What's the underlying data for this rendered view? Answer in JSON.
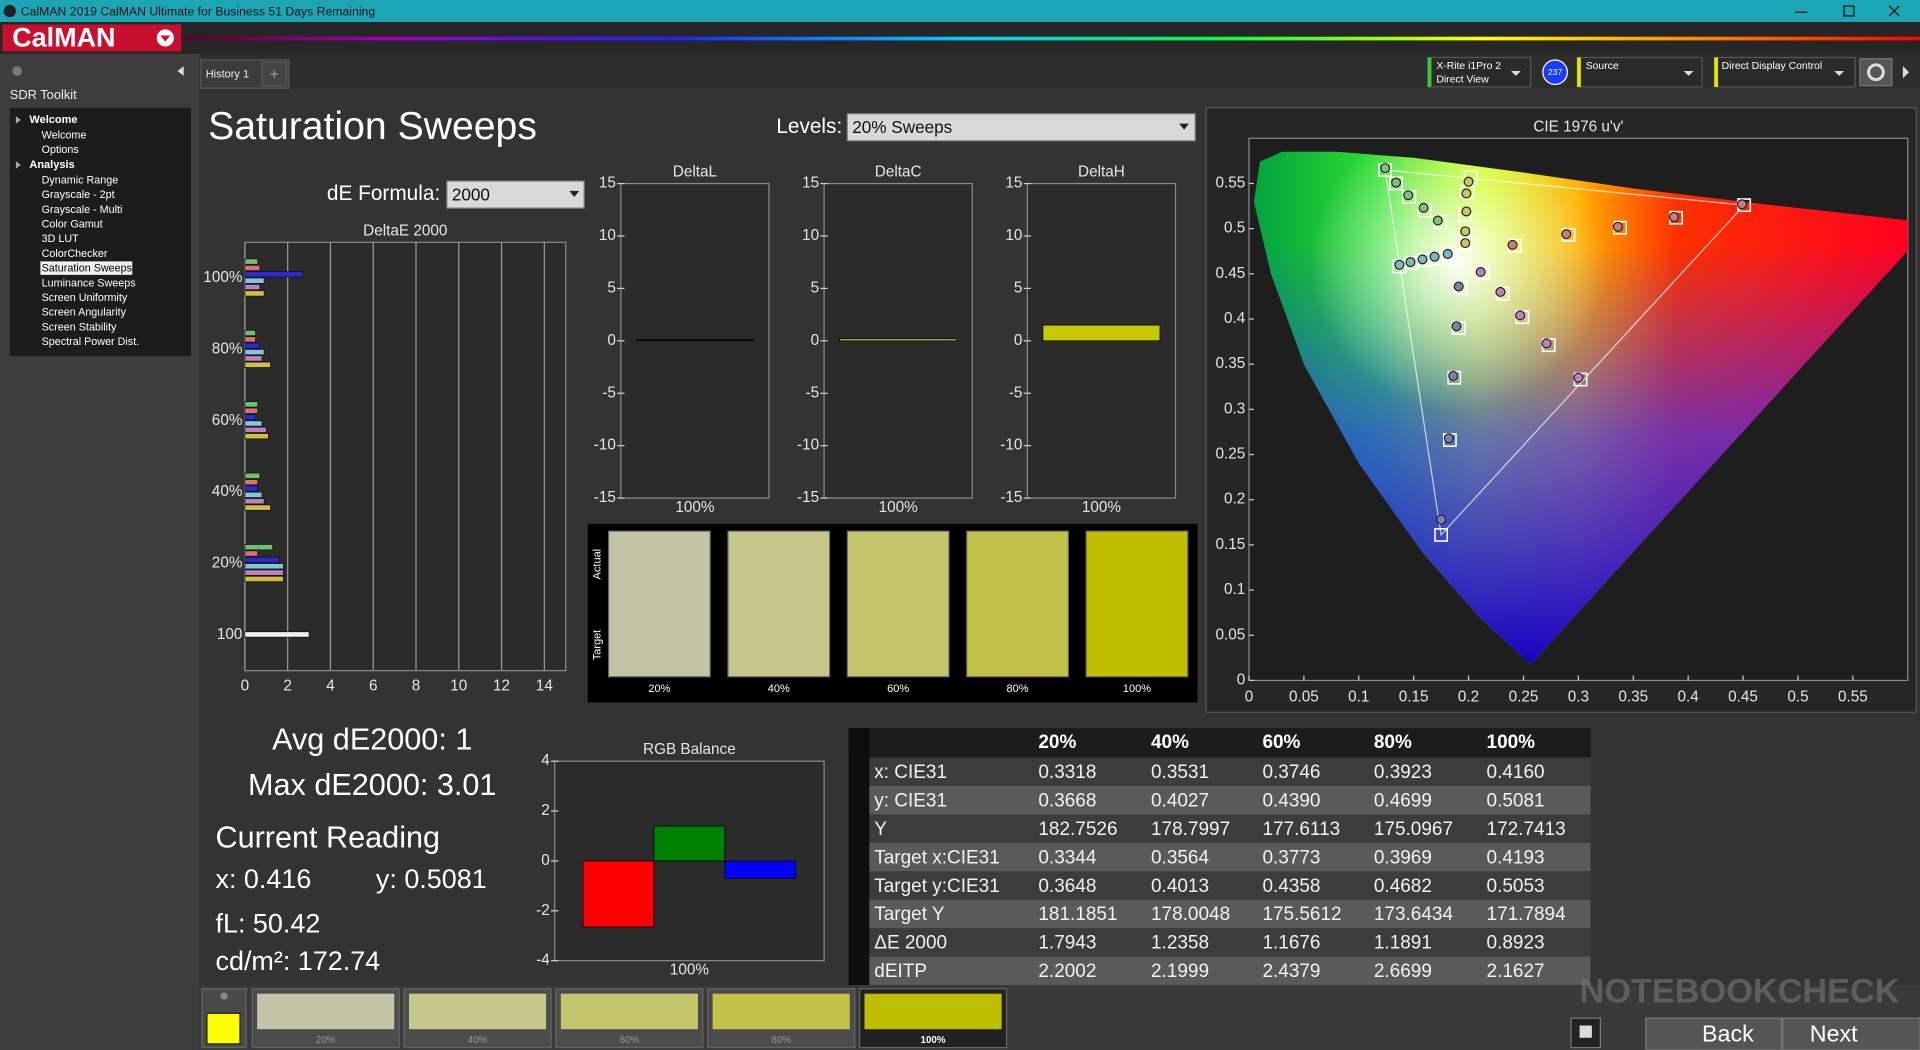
{
  "window": {
    "title": "CalMAN 2019 CalMAN Ultimate for Business 51 Days Remaining",
    "logo": "CalMAN"
  },
  "sidebar": {
    "header": "SDR Toolkit",
    "groups": [
      {
        "label": "Welcome",
        "items": [
          "Welcome",
          "Options"
        ]
      },
      {
        "label": "Analysis",
        "items": [
          "Dynamic Range",
          "Grayscale - 2pt",
          "Grayscale - Multi",
          "Color Gamut",
          "3D LUT",
          "ColorChecker",
          "Saturation Sweeps",
          "Luminance Sweeps",
          "Screen Uniformity",
          "Screen Angularity",
          "Screen Stability",
          "Spectral Power Dist."
        ],
        "selected": 6
      }
    ]
  },
  "tabs": {
    "history": "History 1"
  },
  "devices": {
    "meter": "X-Rite i1Pro 2",
    "meter_mode": "Direct View",
    "meter_badge": "237",
    "source": "Source",
    "display": "Direct Display Control"
  },
  "page": {
    "title": "Saturation Sweeps",
    "levels_label": "Levels:",
    "levels_value": "20% Sweeps",
    "formula_label": "dE Formula:",
    "formula_value": "2000"
  },
  "swatches": {
    "actual_label": "Actual",
    "target_label": "Target",
    "items": [
      {
        "label": "20%",
        "color": "#c3c6a6"
      },
      {
        "label": "40%",
        "color": "#c7c78c"
      },
      {
        "label": "60%",
        "color": "#c5c56b"
      },
      {
        "label": "80%",
        "color": "#c3c349"
      },
      {
        "label": "100%",
        "color": "#bfbf00"
      }
    ]
  },
  "readings": {
    "avg": "Avg dE2000: 1",
    "max": "Max dE2000: 3.01",
    "heading": "Current Reading",
    "x": "x: 0.416",
    "y": "y: 0.5081",
    "fl": "fL: 50.42",
    "cdm2": "cd/m²: 172.74",
    "color": "#ffff00"
  },
  "table": {
    "columns": [
      "20%",
      "40%",
      "60%",
      "80%",
      "100%"
    ],
    "rows": [
      {
        "label": "x: CIE31",
        "cells": [
          "0.3318",
          "0.3531",
          "0.3746",
          "0.3923",
          "0.4160"
        ]
      },
      {
        "label": "y: CIE31",
        "cells": [
          "0.3668",
          "0.4027",
          "0.4390",
          "0.4699",
          "0.5081"
        ]
      },
      {
        "label": "Y",
        "cells": [
          "182.7526",
          "178.7997",
          "177.6113",
          "175.0967",
          "172.7413"
        ]
      },
      {
        "label": "Target x:CIE31",
        "cells": [
          "0.3344",
          "0.3564",
          "0.3773",
          "0.3969",
          "0.4193"
        ]
      },
      {
        "label": "Target y:CIE31",
        "cells": [
          "0.3648",
          "0.4013",
          "0.4358",
          "0.4682",
          "0.5053"
        ]
      },
      {
        "label": "Target Y",
        "cells": [
          "181.1851",
          "178.0048",
          "175.5612",
          "173.6434",
          "171.7894"
        ]
      },
      {
        "label": "ΔE 2000",
        "cells": [
          "1.7943",
          "1.2358",
          "1.1676",
          "1.1891",
          "0.8923"
        ]
      },
      {
        "label": "dEITP",
        "cells": [
          "2.2002",
          "2.1999",
          "2.4379",
          "2.6699",
          "2.1627"
        ]
      }
    ]
  },
  "nav": {
    "back": "Back",
    "next": "Next"
  },
  "watermark": "NOTEBOOKCHECK",
  "chart_data": [
    {
      "type": "hbar",
      "title": "DeltaE 2000",
      "categories": [
        "100%",
        "80%",
        "60%",
        "40%",
        "20%",
        "100"
      ],
      "series": [
        {
          "color": "#70c070",
          "values": [
            0.6,
            0.5,
            0.6,
            0.7,
            1.3,
            null
          ]
        },
        {
          "color": "#e07070",
          "values": [
            0.7,
            0.5,
            0.6,
            0.6,
            0.6,
            null
          ]
        },
        {
          "color": "#2a2ad0",
          "values": [
            2.7,
            0.7,
            0.5,
            0.6,
            1.6,
            null
          ]
        },
        {
          "color": "#80c8d8",
          "values": [
            0.9,
            0.9,
            0.8,
            0.8,
            1.8,
            null
          ]
        },
        {
          "color": "#c080c0",
          "values": [
            0.7,
            0.8,
            1.0,
            0.9,
            1.8,
            null
          ]
        },
        {
          "color": "#d0c040",
          "values": [
            0.9,
            1.2,
            1.1,
            1.2,
            1.8,
            null
          ]
        },
        {
          "color": "#f0f0f0",
          "values": [
            null,
            null,
            null,
            null,
            null,
            3.0
          ]
        }
      ],
      "xlim": [
        0,
        15
      ],
      "xticks": [
        0,
        2,
        4,
        6,
        8,
        10,
        12,
        14
      ],
      "grid": true
    },
    {
      "type": "bar",
      "title": "DeltaL",
      "categories": [
        "100%"
      ],
      "values": [
        0.1
      ],
      "color": "#111111",
      "ylim": [
        -15,
        15
      ],
      "yticks": [
        -15,
        -10,
        -5,
        0,
        5,
        10,
        15
      ]
    },
    {
      "type": "bar",
      "title": "DeltaC",
      "categories": [
        "100%"
      ],
      "values": [
        0.2
      ],
      "color": "#b8b830",
      "ylim": [
        -15,
        15
      ],
      "yticks": [
        -15,
        -10,
        -5,
        0,
        5,
        10,
        15
      ]
    },
    {
      "type": "bar",
      "title": "DeltaH",
      "categories": [
        "100%"
      ],
      "values": [
        1.5
      ],
      "color": "#c8c800",
      "ylim": [
        -15,
        15
      ],
      "yticks": [
        -15,
        -10,
        -5,
        0,
        5,
        10,
        15
      ]
    },
    {
      "type": "bar",
      "title": "RGB Balance",
      "categories": [
        "100%"
      ],
      "series": [
        {
          "color": "#ff0000",
          "values": [
            -2.65
          ]
        },
        {
          "color": "#008000",
          "values": [
            1.4
          ]
        },
        {
          "color": "#0000ff",
          "values": [
            -0.7
          ]
        }
      ],
      "ylim": [
        -4,
        4
      ],
      "yticks": [
        -4,
        -2,
        0,
        2,
        4
      ]
    },
    {
      "type": "scatter",
      "title": "CIE 1976 u'v'",
      "xlim": [
        0,
        0.6
      ],
      "ylim": [
        0,
        0.6
      ],
      "xticks": [
        0,
        0.05,
        0.1,
        0.15,
        0.2,
        0.25,
        0.3,
        0.35,
        0.4,
        0.45,
        0.5,
        0.55
      ],
      "yticks": [
        0,
        0.05,
        0.1,
        0.15,
        0.2,
        0.25,
        0.3,
        0.35,
        0.4,
        0.45,
        0.5,
        0.55
      ],
      "series": [
        {
          "marker": "square",
          "color": "#ffffff",
          "x": [
            0.197,
            0.242,
            0.291,
            0.338,
            0.389,
            0.451,
            0.197,
            0.197,
            0.197,
            0.199,
            0.202,
            0.174,
            0.16,
            0.146,
            0.134,
            0.124,
            0.183,
            0.171,
            0.16,
            0.148,
            0.137,
            0.193,
            0.191,
            0.187,
            0.183,
            0.175,
            0.213,
            0.231,
            0.249,
            0.273,
            0.302
          ],
          "values": [
            0.4715,
            0.481,
            0.493,
            0.501,
            0.512,
            0.526,
            0.482,
            0.492,
            0.515,
            0.541,
            0.557,
            0.507,
            0.52,
            0.535,
            0.55,
            0.565,
            0.47,
            0.467,
            0.465,
            0.462,
            0.458,
            0.434,
            0.39,
            0.335,
            0.266,
            0.161,
            0.451,
            0.428,
            0.402,
            0.371,
            0.333
          ]
        },
        {
          "marker": "circle",
          "color": "#c08080",
          "x": [
            0.24,
            0.289,
            0.336,
            0.387,
            0.449
          ],
          "values": [
            0.482,
            0.494,
            0.502,
            0.513,
            0.527
          ]
        },
        {
          "marker": "circle",
          "color": "#c8c860",
          "x": [
            0.197,
            0.197,
            0.198,
            0.198,
            0.2
          ],
          "values": [
            0.484,
            0.497,
            0.519,
            0.539,
            0.552
          ]
        },
        {
          "marker": "circle",
          "color": "#80c080",
          "x": [
            0.172,
            0.159,
            0.145,
            0.134,
            0.124
          ],
          "values": [
            0.509,
            0.523,
            0.537,
            0.551,
            0.567
          ]
        },
        {
          "marker": "circle",
          "color": "#80b8c0",
          "x": [
            0.181,
            0.169,
            0.158,
            0.147,
            0.137
          ],
          "values": [
            0.472,
            0.469,
            0.466,
            0.463,
            0.46
          ]
        },
        {
          "marker": "circle",
          "color": "#8080b0",
          "x": [
            0.191,
            0.189,
            0.186,
            0.182,
            0.175
          ],
          "values": [
            0.436,
            0.392,
            0.337,
            0.268,
            0.178
          ]
        },
        {
          "marker": "circle",
          "color": "#c080c0",
          "x": [
            0.211,
            0.229,
            0.247,
            0.271,
            0.3
          ],
          "values": [
            0.452,
            0.43,
            0.404,
            0.373,
            0.335
          ]
        }
      ]
    }
  ]
}
